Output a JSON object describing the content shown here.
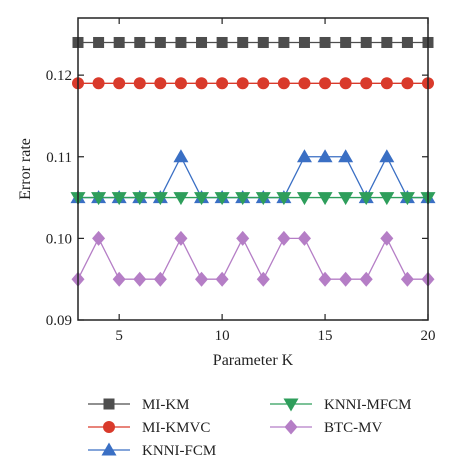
{
  "chart_data": {
    "type": "line",
    "xlabel": "Parameter K",
    "ylabel": "Error rate",
    "xlim": [
      3,
      20
    ],
    "ylim": [
      0.09,
      0.127
    ],
    "x_ticks": [
      5,
      10,
      15,
      20
    ],
    "y_ticks": [
      0.09,
      0.1,
      0.11,
      0.12
    ],
    "y_tick_labels": [
      "0.09",
      "0.10",
      "0.11",
      "0.12"
    ],
    "grid": false,
    "legend_placement": "bottom",
    "x": [
      3,
      4,
      5,
      6,
      7,
      8,
      9,
      10,
      11,
      12,
      13,
      14,
      15,
      16,
      17,
      18,
      19,
      20
    ],
    "series": [
      {
        "name": "MI-KM",
        "color": "#4d4d4d",
        "marker": "square",
        "values": [
          0.124,
          0.124,
          0.124,
          0.124,
          0.124,
          0.124,
          0.124,
          0.124,
          0.124,
          0.124,
          0.124,
          0.124,
          0.124,
          0.124,
          0.124,
          0.124,
          0.124,
          0.124
        ]
      },
      {
        "name": "MI-KMVC",
        "color": "#d93a2b",
        "marker": "circle",
        "values": [
          0.119,
          0.119,
          0.119,
          0.119,
          0.119,
          0.119,
          0.119,
          0.119,
          0.119,
          0.119,
          0.119,
          0.119,
          0.119,
          0.119,
          0.119,
          0.119,
          0.119,
          0.119
        ]
      },
      {
        "name": "KNNI-FCM",
        "color": "#3a6fc4",
        "marker": "triangle-up",
        "values": [
          0.105,
          0.105,
          0.105,
          0.105,
          0.105,
          0.11,
          0.105,
          0.105,
          0.105,
          0.105,
          0.105,
          0.11,
          0.11,
          0.11,
          0.105,
          0.11,
          0.105,
          0.105
        ]
      },
      {
        "name": "KNNI-MFCM",
        "color": "#2e9e5b",
        "marker": "triangle-down",
        "values": [
          0.105,
          0.105,
          0.105,
          0.105,
          0.105,
          0.105,
          0.105,
          0.105,
          0.105,
          0.105,
          0.105,
          0.105,
          0.105,
          0.105,
          0.105,
          0.105,
          0.105,
          0.105
        ]
      },
      {
        "name": "BTC-MV",
        "color": "#b57ec6",
        "marker": "diamond",
        "values": [
          0.095,
          0.1,
          0.095,
          0.095,
          0.095,
          0.1,
          0.095,
          0.095,
          0.1,
          0.095,
          0.1,
          0.1,
          0.095,
          0.095,
          0.095,
          0.1,
          0.095,
          0.095
        ]
      }
    ]
  }
}
